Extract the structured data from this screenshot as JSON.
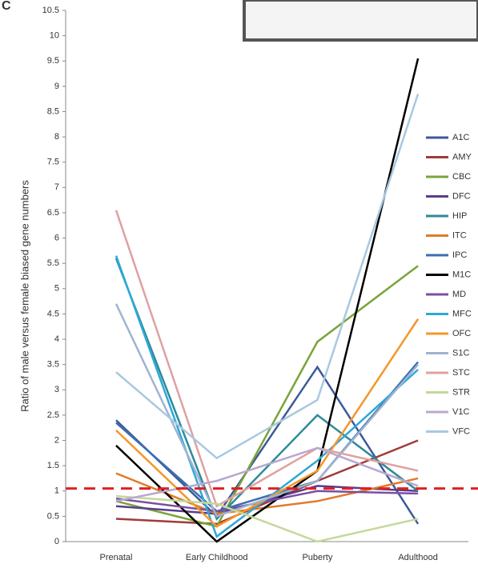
{
  "chart_data": {
    "type": "line",
    "panel_label": "C",
    "y_label": "Ratio of male versus female biased gene numbers",
    "categories": [
      "Prenatal",
      "Early Childhood",
      "Puberty",
      "Adulthood"
    ],
    "ylim": [
      0,
      10.5
    ],
    "yticks": [
      0,
      0.5,
      1,
      1.5,
      2,
      2.5,
      3,
      3.5,
      4,
      4.5,
      5,
      5.5,
      6,
      6.5,
      7,
      7.5,
      8,
      8.5,
      9,
      9.5,
      10,
      10.5
    ],
    "reference_line": {
      "value": 1.05,
      "color": "#e02020"
    },
    "series": [
      {
        "name": "A1C",
        "color": "#3c5a9a",
        "values": [
          2.4,
          0.5,
          3.45,
          0.35
        ]
      },
      {
        "name": "AMY",
        "color": "#a03a3a",
        "values": [
          0.45,
          0.35,
          1.2,
          2.0
        ]
      },
      {
        "name": "CBC",
        "color": "#7aa33a",
        "values": [
          0.8,
          0.3,
          3.95,
          5.45
        ]
      },
      {
        "name": "DFC",
        "color": "#5b3c8c",
        "values": [
          0.7,
          0.55,
          1.1,
          1.0
        ]
      },
      {
        "name": "HIP",
        "color": "#2e8a9a",
        "values": [
          5.6,
          0.45,
          2.5,
          1.0
        ]
      },
      {
        "name": "ITC",
        "color": "#e07b2a",
        "values": [
          1.35,
          0.55,
          0.8,
          1.25
        ]
      },
      {
        "name": "IPC",
        "color": "#3a6fb0",
        "values": [
          2.35,
          0.6,
          1.2,
          3.55
        ]
      },
      {
        "name": "M1C",
        "color": "#000000",
        "values": [
          1.9,
          0,
          1.4,
          9.55
        ]
      },
      {
        "name": "MD",
        "color": "#7a4fa0",
        "values": [
          0.85,
          0.6,
          1.0,
          0.95
        ]
      },
      {
        "name": "MFC",
        "color": "#2ea8d8",
        "values": [
          5.65,
          0.1,
          1.6,
          3.4
        ]
      },
      {
        "name": "OFC",
        "color": "#f5962a",
        "values": [
          2.2,
          0.3,
          1.4,
          4.4
        ]
      },
      {
        "name": "S1C",
        "color": "#9fb4d0",
        "values": [
          4.7,
          0.5,
          1.2,
          3.5
        ]
      },
      {
        "name": "STC",
        "color": "#e0a0a0",
        "values": [
          6.55,
          0.7,
          1.85,
          1.4
        ]
      },
      {
        "name": "STR",
        "color": "#c4d89a",
        "values": [
          0.9,
          0.75,
          0,
          0.45
        ]
      },
      {
        "name": "V1C",
        "color": "#b8a8d0",
        "values": [
          0.8,
          1.2,
          1.85,
          1.1
        ]
      },
      {
        "name": "VFC",
        "color": "#a8c8e0",
        "values": [
          3.35,
          1.65,
          2.8,
          8.85
        ]
      }
    ]
  }
}
